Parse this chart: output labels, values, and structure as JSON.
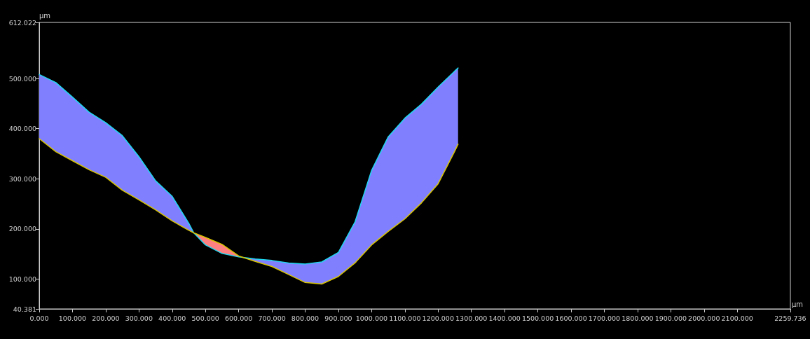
{
  "chart_data": {
    "type": "line",
    "xlabel": "μm",
    "ylabel": "μm",
    "x": [
      0,
      50,
      100,
      150,
      200,
      250,
      300,
      350,
      400,
      450,
      465,
      500,
      550,
      600,
      613,
      650,
      700,
      750,
      800,
      850,
      900,
      950,
      1000,
      1050,
      1100,
      1150,
      1200,
      1250,
      1260
    ],
    "series": [
      {
        "color": "#1fd8f0",
        "values": [
          508,
          492,
          463,
          433,
          412,
          386,
          344,
          296,
          265,
          211,
          192,
          168,
          151,
          144,
          143,
          140,
          137,
          132,
          130,
          134,
          153,
          214,
          317,
          384,
          421,
          449,
          483,
          515,
          521
        ],
        "lower": [
          380,
          354,
          336,
          318,
          303,
          277,
          258,
          238,
          216,
          197,
          192,
          null,
          null,
          null,
          143,
          135,
          125,
          109,
          93,
          90,
          105,
          132,
          168,
          195,
          220,
          252,
          290,
          355,
          369
        ],
        "upper": [
          508,
          492,
          463,
          433,
          412,
          386,
          344,
          296,
          265,
          211,
          192,
          null,
          null,
          null,
          143,
          140,
          137,
          132,
          130,
          134,
          153,
          214,
          317,
          384,
          421,
          449,
          483,
          515,
          521
        ]
      },
      {
        "color": "#d8c400",
        "values": [
          380,
          354,
          336,
          318,
          303,
          277,
          258,
          238,
          216,
          197,
          192,
          183,
          169,
          146,
          143,
          135,
          125,
          109,
          93,
          90,
          105,
          132,
          168,
          195,
          220,
          252,
          290,
          355,
          369
        ],
        "lower": [
          null,
          null,
          null,
          null,
          null,
          null,
          null,
          null,
          null,
          null,
          192,
          168,
          151,
          144,
          143,
          null,
          null,
          null,
          null,
          null,
          null,
          null,
          null,
          null,
          null,
          null,
          null,
          null,
          null
        ],
        "upper": [
          null,
          null,
          null,
          null,
          null,
          null,
          null,
          null,
          null,
          null,
          192,
          183,
          169,
          146,
          143,
          null,
          null,
          null,
          null,
          null,
          null,
          null,
          null,
          null,
          null,
          null,
          null,
          null,
          null
        ]
      }
    ],
    "colors": [
      "#8080ff",
      "#ff8080"
    ],
    "xlim": [
      0,
      2259.736
    ],
    "xticks": [
      {
        "value": 0,
        "label": "0.000"
      },
      {
        "value": 100,
        "label": "100.000"
      },
      {
        "value": 200,
        "label": "200.000"
      },
      {
        "value": 300,
        "label": "300.000"
      },
      {
        "value": 400,
        "label": "400.000"
      },
      {
        "value": 500,
        "label": "500.000"
      },
      {
        "value": 600,
        "label": "600.000"
      },
      {
        "value": 700,
        "label": "700.000"
      },
      {
        "value": 800,
        "label": "800.000"
      },
      {
        "value": 900,
        "label": "900.000"
      },
      {
        "value": 1000,
        "label": "1000.000"
      },
      {
        "value": 1100,
        "label": "1100.000"
      },
      {
        "value": 1200,
        "label": "1200.000"
      },
      {
        "value": 1300,
        "label": "1300.000"
      },
      {
        "value": 1400,
        "label": "1400.000"
      },
      {
        "value": 1500,
        "label": "1500.000"
      },
      {
        "value": 1600,
        "label": "1600.000"
      },
      {
        "value": 1700,
        "label": "1700.000"
      },
      {
        "value": 1800,
        "label": "1800.000"
      },
      {
        "value": 1900,
        "label": "1900.000"
      },
      {
        "value": 2000,
        "label": "2000.000"
      },
      {
        "value": 2100,
        "label": "2100.000"
      },
      {
        "value": 2259.736,
        "label": "2259.736"
      }
    ],
    "ylim": [
      40.381,
      612.022
    ],
    "yticks": [
      {
        "value": 40.381,
        "label": "40.381"
      },
      {
        "value": 100,
        "label": "100.000"
      },
      {
        "value": 200,
        "label": "200.000"
      },
      {
        "value": 300,
        "label": "300.000"
      },
      {
        "value": 400,
        "label": "400.000"
      },
      {
        "value": 500,
        "label": "500.000"
      },
      {
        "value": 612.022,
        "label": "612.022"
      }
    ],
    "grid": false,
    "marker": "none",
    "line_style": "solid"
  }
}
